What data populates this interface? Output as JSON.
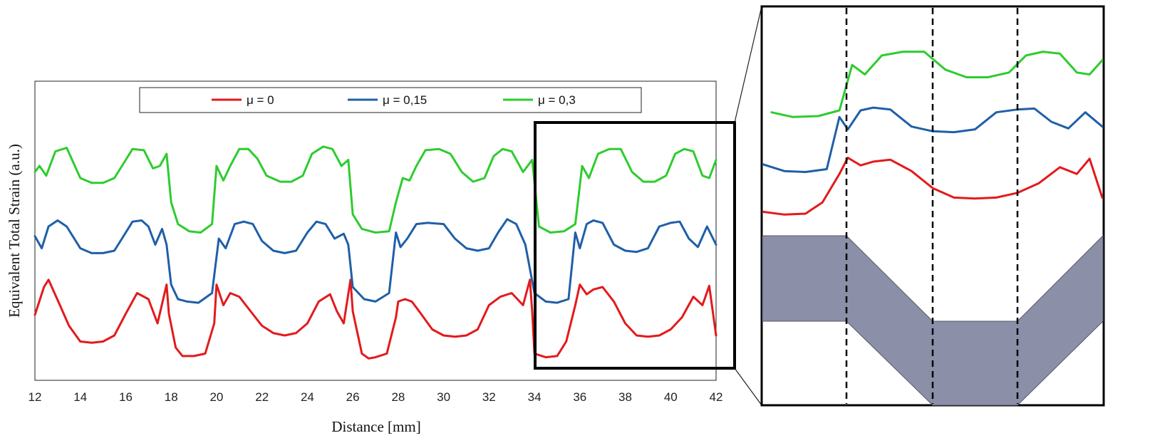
{
  "chart_data": {
    "type": "line",
    "xlabel": "Distance [mm]",
    "ylabel": "Equivalent Total Strain (a.u.)",
    "xlim": [
      12,
      42
    ],
    "xticks": [
      "12",
      "14",
      "16",
      "18",
      "20",
      "22",
      "24",
      "26",
      "28",
      "30",
      "32",
      "34",
      "36",
      "38",
      "40",
      "42"
    ],
    "y_tick_labels_shown": false,
    "grid": false,
    "legend_position": "top",
    "zoom_window_x": [
      34,
      42
    ],
    "series": [
      {
        "name": "μ = 0",
        "color": "#e31a1c",
        "x": [
          12,
          12.4,
          12.6,
          13.1,
          13.5,
          14,
          14.5,
          15,
          15.5,
          16,
          16.5,
          17,
          17.4,
          17.8,
          17.9,
          18.2,
          18.5,
          19,
          19.5,
          19.9,
          20,
          20.3,
          20.6,
          21,
          21.5,
          22,
          22.5,
          23,
          23.5,
          24,
          24.5,
          25,
          25.3,
          25.6,
          25.9,
          26,
          26.4,
          26.7,
          27,
          27.5,
          27.9,
          28,
          28.3,
          28.6,
          29,
          29.5,
          30,
          30.5,
          31,
          31.5,
          32,
          32.5,
          33,
          33.5,
          33.8,
          33.9,
          34,
          34.5,
          35,
          35.4,
          35.8,
          36,
          36.3,
          36.6,
          37,
          37.5,
          38,
          38.5,
          39,
          39.5,
          40,
          40.5,
          41,
          41.4,
          41.7,
          42
        ],
        "y": [
          0.37,
          0.6,
          0.66,
          0.45,
          0.28,
          0.15,
          0.14,
          0.15,
          0.2,
          0.38,
          0.55,
          0.5,
          0.3,
          0.62,
          0.38,
          0.1,
          0.03,
          0.03,
          0.05,
          0.3,
          0.62,
          0.45,
          0.55,
          0.52,
          0.4,
          0.28,
          0.22,
          0.2,
          0.22,
          0.3,
          0.48,
          0.54,
          0.4,
          0.3,
          0.66,
          0.4,
          0.05,
          0.01,
          0.02,
          0.05,
          0.35,
          0.48,
          0.5,
          0.48,
          0.38,
          0.25,
          0.2,
          0.19,
          0.2,
          0.25,
          0.45,
          0.52,
          0.55,
          0.45,
          0.66,
          0.4,
          0.05,
          0.02,
          0.03,
          0.15,
          0.45,
          0.62,
          0.54,
          0.58,
          0.6,
          0.48,
          0.3,
          0.2,
          0.19,
          0.2,
          0.25,
          0.35,
          0.52,
          0.45,
          0.61,
          0.2
        ]
      },
      {
        "name": "μ = 0,15",
        "color": "#1f5fa8",
        "x": [
          12,
          12.3,
          12.6,
          13,
          13.4,
          14,
          14.5,
          15,
          15.5,
          16,
          16.3,
          16.7,
          17,
          17.3,
          17.6,
          17.8,
          18,
          18.3,
          18.7,
          19.2,
          19.8,
          20.1,
          20.4,
          20.8,
          21.2,
          21.6,
          22,
          22.5,
          23,
          23.5,
          24,
          24.4,
          24.8,
          25.2,
          25.6,
          25.8,
          26,
          26.5,
          27,
          27.6,
          27.9,
          28.1,
          28.4,
          28.8,
          29.3,
          30,
          30.5,
          31,
          31.5,
          32,
          32.4,
          32.8,
          33.2,
          33.6,
          34,
          34.5,
          35,
          35.5,
          35.8,
          36,
          36.3,
          36.6,
          37,
          37.5,
          38,
          38.5,
          39,
          39.5,
          40,
          40.4,
          40.8,
          41.2,
          41.6,
          42
        ],
        "y": [
          1.02,
          0.92,
          1.1,
          1.15,
          1.1,
          0.92,
          0.88,
          0.88,
          0.9,
          1.05,
          1.14,
          1.15,
          1.1,
          0.95,
          1.08,
          0.95,
          0.62,
          0.5,
          0.48,
          0.47,
          0.55,
          1.0,
          0.92,
          1.12,
          1.14,
          1.12,
          0.98,
          0.9,
          0.88,
          0.9,
          1.05,
          1.14,
          1.12,
          1.0,
          1.04,
          0.95,
          0.6,
          0.5,
          0.48,
          0.55,
          1.05,
          0.93,
          1.0,
          1.12,
          1.13,
          1.12,
          1.0,
          0.92,
          0.9,
          0.92,
          1.05,
          1.16,
          1.12,
          0.95,
          0.55,
          0.48,
          0.47,
          0.5,
          1.05,
          0.92,
          1.12,
          1.15,
          1.13,
          0.95,
          0.9,
          0.89,
          0.92,
          1.1,
          1.13,
          1.14,
          1.0,
          0.93,
          1.1,
          0.95
        ]
      },
      {
        "name": "μ = 0,3",
        "color": "#2ecc2e",
        "x": [
          12,
          12.2,
          12.5,
          12.9,
          13.4,
          14,
          14.5,
          15,
          15.5,
          16,
          16.3,
          16.8,
          17.2,
          17.5,
          17.8,
          18,
          18.3,
          18.8,
          19.3,
          19.8,
          20,
          20.3,
          20.6,
          21,
          21.4,
          21.8,
          22.2,
          22.8,
          23.3,
          23.8,
          24.2,
          24.7,
          25.1,
          25.5,
          25.8,
          26,
          26.4,
          27,
          27.6,
          27.9,
          28.2,
          28.5,
          28.8,
          29.2,
          29.8,
          30.3,
          30.8,
          31.3,
          31.8,
          32.2,
          32.6,
          33,
          33.5,
          33.9,
          34.2,
          34.7,
          35.3,
          35.8,
          36.1,
          36.4,
          36.8,
          37.3,
          37.8,
          38.3,
          38.8,
          39.3,
          39.8,
          40.2,
          40.6,
          41,
          41.4,
          41.7,
          42
        ],
        "y": [
          1.55,
          1.6,
          1.52,
          1.72,
          1.75,
          1.5,
          1.46,
          1.46,
          1.5,
          1.65,
          1.74,
          1.73,
          1.58,
          1.6,
          1.7,
          1.3,
          1.12,
          1.06,
          1.05,
          1.12,
          1.6,
          1.48,
          1.6,
          1.74,
          1.74,
          1.66,
          1.52,
          1.47,
          1.47,
          1.52,
          1.7,
          1.76,
          1.74,
          1.6,
          1.65,
          1.2,
          1.08,
          1.05,
          1.06,
          1.3,
          1.5,
          1.48,
          1.6,
          1.73,
          1.74,
          1.7,
          1.55,
          1.47,
          1.5,
          1.68,
          1.74,
          1.72,
          1.55,
          1.65,
          1.1,
          1.05,
          1.06,
          1.12,
          1.6,
          1.5,
          1.7,
          1.74,
          1.74,
          1.55,
          1.47,
          1.47,
          1.52,
          1.7,
          1.74,
          1.72,
          1.52,
          1.5,
          1.65
        ]
      }
    ]
  }
}
